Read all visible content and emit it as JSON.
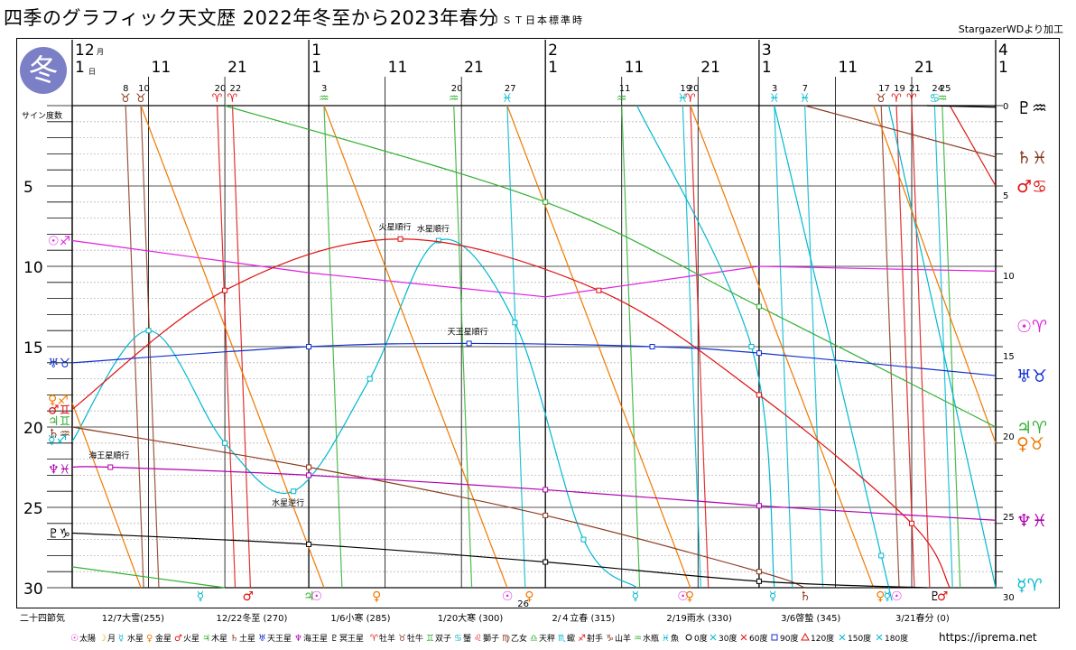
{
  "page": {
    "title": "四季のグラフィック天文歴 2022年冬至から2023年春分",
    "subtitle": "ＪＳＴ日本標準時",
    "credit": "StargazerWDより加工",
    "url": "https://iprema.net",
    "season": "冬",
    "sekki_header": "二十四節気"
  },
  "colors": {
    "sun": "#e020e0",
    "moon": "#d2b400",
    "mercury": "#00b8d0",
    "venus": "#f07800",
    "mars": "#e01010",
    "jupiter": "#30b030",
    "saturn": "#8b3a1e",
    "uranus": "#1030d0",
    "neptune": "#b000b0",
    "pluto": "#000000",
    "grid": "#666666",
    "minor_grid": "#c0c0c0"
  },
  "chart_data": {
    "type": "line",
    "title": "四季のグラフィック天文歴 2022年冬至から2023年春分",
    "ylabel": "サイン度数",
    "ylim": [
      0,
      30
    ],
    "y_inverted": true,
    "yticks": [
      5,
      10,
      15,
      20,
      25,
      30
    ],
    "y_zero_label": "0",
    "x_start": "2022-12-01",
    "x_end": "2023-04-01",
    "month_labels": [
      {
        "month": "12",
        "unit": "月",
        "date": "2022-12-01"
      },
      {
        "month": "1",
        "date": "2023-01-01"
      },
      {
        "month": "2",
        "date": "2023-02-01"
      },
      {
        "month": "3",
        "date": "2023-03-01"
      },
      {
        "month": "4",
        "date": "2023-04-01"
      }
    ],
    "day_labels": [
      {
        "text": "1",
        "unit": "日",
        "date": "2022-12-01"
      },
      {
        "text": "11",
        "date": "2022-12-11"
      },
      {
        "text": "21",
        "date": "2022-12-21"
      },
      {
        "text": "1",
        "date": "2023-01-01"
      },
      {
        "text": "11",
        "date": "2023-01-11"
      },
      {
        "text": "21",
        "date": "2023-01-21"
      },
      {
        "text": "1",
        "date": "2023-02-01"
      },
      {
        "text": "11",
        "date": "2023-02-11"
      },
      {
        "text": "21",
        "date": "2023-02-21"
      },
      {
        "text": "1",
        "date": "2023-03-01"
      },
      {
        "text": "11",
        "date": "2023-03-11"
      },
      {
        "text": "21",
        "date": "2023-03-21"
      },
      {
        "text": "1",
        "date": "2023-04-01"
      }
    ],
    "moon_ingresses": [
      {
        "date": "2022-12-08",
        "day": "8",
        "sign": "♉"
      },
      {
        "date": "2022-12-10",
        "day": "10",
        "sign": "♉"
      },
      {
        "date": "2022-12-20",
        "day": "20",
        "sign": "♈"
      },
      {
        "date": "2022-12-22",
        "day": "22",
        "sign": "♈"
      },
      {
        "date": "2023-01-03",
        "day": "3",
        "sign": "♒"
      },
      {
        "date": "2023-01-20",
        "day": "20",
        "sign": "♒"
      },
      {
        "date": "2023-01-27",
        "day": "27",
        "sign": "♓"
      },
      {
        "date": "2023-02-11",
        "day": "11",
        "sign": "♒"
      },
      {
        "date": "2023-02-19",
        "day": "19",
        "sign": "♓"
      },
      {
        "date": "2023-02-20",
        "day": "20",
        "sign": "♈"
      },
      {
        "date": "2023-03-03",
        "day": "3",
        "sign": "♓"
      },
      {
        "date": "2023-03-07",
        "day": "7",
        "sign": "♓"
      },
      {
        "date": "2023-03-17",
        "day": "17",
        "sign": "♉"
      },
      {
        "date": "2023-03-19",
        "day": "19",
        "sign": "♈"
      },
      {
        "date": "2023-03-21",
        "day": "21",
        "sign": "♈"
      },
      {
        "date": "2023-03-24",
        "day": "24",
        "sign": "♋"
      },
      {
        "date": "2023-03-25",
        "day": "25",
        "sign": "♒"
      }
    ],
    "series": [
      {
        "name": "太陽",
        "key": "sun",
        "symbol": "☉",
        "segments": [
          {
            "points": [
              [
                "2022-12-01",
                8.4
              ],
              [
                "2023-01-01",
                10.4
              ]
            ]
          },
          {
            "points": [
              [
                "2023-01-01",
                10.4
              ],
              [
                "2023-02-01",
                11.9
              ]
            ]
          },
          {
            "points": [
              [
                "2023-02-01",
                11.9
              ],
              [
                "2023-03-01",
                10.0
              ]
            ]
          },
          {
            "points": [
              [
                "2023-03-01",
                10.0
              ],
              [
                "2023-04-01",
                10.3
              ]
            ]
          }
        ],
        "left_label": {
          "y": 8.4,
          "sign": "♐"
        },
        "right_label": {
          "y": 13.7,
          "sign": "♈"
        }
      },
      {
        "name": "月",
        "key": "moon",
        "symbol": "☽",
        "segments": []
      },
      {
        "name": "水星",
        "key": "mercury",
        "symbol": "☿",
        "segments": [
          {
            "points": [
              [
                "2022-12-01",
                20.9
              ],
              [
                "2022-12-11",
                14.0
              ],
              [
                "2022-12-21",
                21.0
              ],
              [
                "2022-12-30",
                24.0
              ],
              [
                "2023-01-09",
                17.0
              ],
              [
                "2023-01-18",
                8.4
              ],
              [
                "2023-01-28",
                13.5
              ],
              [
                "2023-02-06",
                27.0
              ],
              [
                "2023-02-13",
                30.0
              ]
            ]
          },
          {
            "points": [
              [
                "2023-02-13",
                0.0
              ],
              [
                "2023-02-28",
                15.0
              ],
              [
                "2023-03-03",
                30.0
              ]
            ]
          },
          {
            "points": [
              [
                "2023-03-03",
                0.0
              ],
              [
                "2023-03-17",
                28.0
              ],
              [
                "2023-03-18",
                30.0
              ]
            ]
          },
          {
            "points": [
              [
                "2023-03-18",
                0.0
              ],
              [
                "2023-04-01",
                30.0
              ]
            ]
          }
        ],
        "left_label": {
          "y": 20.8,
          "sign": "♐"
        },
        "right_label": {
          "y": 29.8,
          "sign": "♈"
        }
      },
      {
        "name": "金星",
        "key": "venus",
        "symbol": "♀",
        "segments": [
          {
            "points": [
              [
                "2022-12-01",
                18.5
              ],
              [
                "2022-12-10",
                30.0
              ]
            ]
          },
          {
            "points": [
              [
                "2022-12-10",
                0.0
              ],
              [
                "2023-01-03",
                30.0
              ]
            ]
          },
          {
            "points": [
              [
                "2023-01-03",
                0.0
              ],
              [
                "2023-01-27",
                30.0
              ]
            ]
          },
          {
            "points": [
              [
                "2023-01-27",
                0.0
              ],
              [
                "2023-02-20",
                30.0
              ]
            ]
          },
          {
            "points": [
              [
                "2023-02-20",
                0.0
              ],
              [
                "2023-03-16",
                30.0
              ]
            ]
          },
          {
            "points": [
              [
                "2023-03-16",
                0.0
              ],
              [
                "2023-04-01",
                21.0
              ]
            ]
          }
        ],
        "left_label": {
          "y": 18.3,
          "sign": "♐"
        },
        "right_label": {
          "y": 21.0,
          "sign": "♉"
        }
      },
      {
        "name": "火星",
        "key": "mars",
        "symbol": "♂",
        "segments": [
          {
            "points": [
              [
                "2022-12-01",
                18.9
              ],
              [
                "2022-12-21",
                11.5
              ],
              [
                "2023-01-13",
                8.3
              ],
              [
                "2023-02-08",
                11.5
              ],
              [
                "2023-03-01",
                18.0
              ],
              [
                "2023-03-21",
                26.0
              ],
              [
                "2023-03-26",
                30.0
              ]
            ]
          },
          {
            "points": [
              [
                "2023-03-26",
                0.0
              ],
              [
                "2023-04-01",
                5.0
              ]
            ]
          }
        ],
        "left_label": {
          "y": 18.9,
          "sign": "♊"
        },
        "right_label": {
          "y": 5.0,
          "sign": "♋"
        }
      },
      {
        "name": "木星",
        "key": "jupiter",
        "symbol": "♃",
        "segments": [
          {
            "points": [
              [
                "2022-12-01",
                28.7
              ],
              [
                "2022-12-21",
                30.0
              ]
            ]
          },
          {
            "points": [
              [
                "2022-12-21",
                0.0
              ],
              [
                "2023-02-01",
                6.0
              ],
              [
                "2023-03-01",
                12.5
              ],
              [
                "2023-04-01",
                20.0
              ]
            ]
          }
        ],
        "left_label": {
          "y": 19.6,
          "sign": "♊"
        },
        "right_label": {
          "y": 20.0,
          "sign": "♈"
        }
      },
      {
        "name": "土星",
        "key": "saturn",
        "symbol": "♄",
        "segments": [
          {
            "points": [
              [
                "2022-12-01",
                20.0
              ],
              [
                "2023-01-01",
                22.5
              ],
              [
                "2023-02-01",
                25.5
              ],
              [
                "2023-03-01",
                29.0
              ],
              [
                "2023-03-07",
                30.0
              ]
            ]
          },
          {
            "points": [
              [
                "2023-03-07",
                0.0
              ],
              [
                "2023-04-01",
                3.2
              ]
            ]
          }
        ],
        "left_label": {
          "y": 20.4,
          "sign": "♒"
        },
        "right_label": {
          "y": 3.2,
          "sign": "♓"
        }
      },
      {
        "name": "天王星",
        "key": "uranus",
        "symbol": "♅",
        "segments": [
          {
            "points": [
              [
                "2022-12-01",
                16.0
              ],
              [
                "2023-01-01",
                15.0
              ],
              [
                "2023-01-22",
                14.8
              ],
              [
                "2023-02-15",
                15.0
              ],
              [
                "2023-03-01",
                15.4
              ],
              [
                "2023-04-01",
                16.8
              ]
            ]
          }
        ],
        "left_label": {
          "y": 16.0,
          "sign": "♉"
        },
        "right_label": {
          "y": 16.8,
          "sign": "♉"
        }
      },
      {
        "name": "海王星",
        "key": "neptune",
        "symbol": "♆",
        "segments": [
          {
            "points": [
              [
                "2022-12-01",
                22.5
              ],
              [
                "2022-12-06",
                22.5
              ],
              [
                "2023-01-01",
                23.0
              ],
              [
                "2023-02-01",
                23.9
              ],
              [
                "2023-03-01",
                24.9
              ],
              [
                "2023-04-01",
                25.8
              ]
            ]
          }
        ],
        "left_label": {
          "y": 22.6,
          "sign": "♓"
        },
        "right_label": {
          "y": 25.8,
          "sign": "♓"
        }
      },
      {
        "name": "冥王星",
        "key": "pluto",
        "symbol": "♇",
        "segments": [
          {
            "points": [
              [
                "2022-12-01",
                26.6
              ],
              [
                "2023-01-01",
                27.3
              ],
              [
                "2023-02-01",
                28.4
              ],
              [
                "2023-03-01",
                29.6
              ],
              [
                "2023-03-23",
                30.0
              ]
            ]
          },
          {
            "points": [
              [
                "2023-03-23",
                0.0
              ],
              [
                "2023-04-01",
                0.1
              ]
            ]
          }
        ],
        "left_label": {
          "y": 26.6,
          "sign": "♑"
        },
        "right_label": {
          "y": 0.1,
          "sign": "♒"
        }
      }
    ],
    "annotations": [
      {
        "text": "火星順行",
        "date": "2023-01-13",
        "y": 8.3,
        "place": "above"
      },
      {
        "text": "水星順行",
        "date": "2023-01-18",
        "y": 8.4,
        "place": "above"
      },
      {
        "text": "天王星順行",
        "date": "2023-01-22",
        "y": 14.8,
        "place": "above"
      },
      {
        "text": "海王星順行",
        "date": "2022-12-06",
        "y": 22.5,
        "place": "above"
      },
      {
        "text": "水星逆行",
        "date": "2022-12-30",
        "y": 24.0,
        "place": "below"
      }
    ],
    "bottom_events": [
      {
        "date": "2022-12-18",
        "symbol": "☿",
        "key": "mercury"
      },
      {
        "date": "2022-12-24",
        "symbol": "♂",
        "key": "mars"
      },
      {
        "date": "2023-01-01",
        "symbol": "♃",
        "key": "jupiter"
      },
      {
        "date": "2023-01-02",
        "symbol": "☉",
        "key": "sun"
      },
      {
        "date": "2023-01-10",
        "symbol": "♀",
        "key": "venus"
      },
      {
        "date": "2023-01-27",
        "symbol": "☉",
        "key": "sun"
      },
      {
        "date": "2023-01-30",
        "symbol": "♀",
        "key": "venus",
        "note": "26"
      },
      {
        "date": "2023-02-13",
        "symbol": "☿",
        "key": "mercury"
      },
      {
        "date": "2023-02-19",
        "symbol": "☉",
        "key": "sun"
      },
      {
        "date": "2023-02-20",
        "symbol": "♀",
        "key": "venus"
      },
      {
        "date": "2023-03-03",
        "symbol": "☿",
        "key": "mercury"
      },
      {
        "date": "2023-03-07",
        "symbol": "♄",
        "key": "saturn"
      },
      {
        "date": "2023-03-17",
        "symbol": "♀",
        "key": "venus"
      },
      {
        "date": "2023-03-18",
        "symbol": "☿",
        "key": "mercury"
      },
      {
        "date": "2023-03-19",
        "symbol": "☉",
        "key": "sun"
      },
      {
        "date": "2023-03-24",
        "symbol": "♇",
        "key": "pluto"
      },
      {
        "date": "2023-03-25",
        "symbol": "♂",
        "key": "mars"
      }
    ],
    "sekki": [
      {
        "label": "12/7大雪(255)",
        "date": "2022-12-07"
      },
      {
        "label": "12/22冬至 (270)",
        "date": "2022-12-22"
      },
      {
        "label": "1/6小寒 (285)",
        "date": "2023-01-06"
      },
      {
        "label": "1/20大寒 (300)",
        "date": "2023-01-20"
      },
      {
        "label": "2/４立春 (315)",
        "date": "2023-02-04"
      },
      {
        "label": "2/19雨水 (330)",
        "date": "2023-02-19"
      },
      {
        "label": "3/6啓蟄 (345)",
        "date": "2023-03-06"
      },
      {
        "label": "3/21春分 (0)",
        "date": "2023-03-21"
      }
    ]
  },
  "legend": {
    "planets": [
      {
        "symbol": "☉",
        "name": "太陽",
        "key": "sun"
      },
      {
        "symbol": "☽",
        "name": "月",
        "key": "moon"
      },
      {
        "symbol": "☿",
        "name": "水星",
        "key": "mercury"
      },
      {
        "symbol": "♀",
        "name": "金星",
        "key": "venus"
      },
      {
        "symbol": "♂",
        "name": "火星",
        "key": "mars"
      },
      {
        "symbol": "♃",
        "name": "木星",
        "key": "jupiter"
      },
      {
        "symbol": "♄",
        "name": "土星",
        "key": "saturn"
      },
      {
        "symbol": "♅",
        "name": "天王星",
        "key": "uranus"
      },
      {
        "symbol": "♆",
        "name": "海王星",
        "key": "neptune"
      },
      {
        "symbol": "♇",
        "name": "冥王星",
        "key": "pluto"
      }
    ],
    "signs": [
      {
        "symbol": "♈",
        "name": "牡羊",
        "color": "#e01010"
      },
      {
        "symbol": "♉",
        "name": "牡牛",
        "color": "#8b3a1e"
      },
      {
        "symbol": "♊",
        "name": "双子",
        "color": "#30b030"
      },
      {
        "symbol": "♋",
        "name": "蟹",
        "color": "#00b8d0"
      },
      {
        "symbol": "♌",
        "name": "獅子",
        "color": "#e01010"
      },
      {
        "symbol": "♍",
        "name": "乙女",
        "color": "#8b3a1e"
      },
      {
        "symbol": "♎",
        "name": "天秤",
        "color": "#30b030"
      },
      {
        "symbol": "♏",
        "name": "蠍",
        "color": "#00b8d0"
      },
      {
        "symbol": "♐",
        "name": "射手",
        "color": "#e01010"
      },
      {
        "symbol": "♑",
        "name": "山羊",
        "color": "#8b3a1e"
      },
      {
        "symbol": "♒",
        "name": "水瓶",
        "color": "#30b030"
      },
      {
        "symbol": "♓",
        "name": "魚",
        "color": "#00b8d0"
      }
    ],
    "aspects": [
      {
        "marker": "circle",
        "label": "0度"
      },
      {
        "marker": "x",
        "label": "30度"
      },
      {
        "marker": "star",
        "label": "60度"
      },
      {
        "marker": "square",
        "label": "90度"
      },
      {
        "marker": "triangle",
        "label": "120度"
      },
      {
        "marker": "cross",
        "label": "150度"
      },
      {
        "marker": "opposition",
        "label": "180度"
      }
    ]
  }
}
